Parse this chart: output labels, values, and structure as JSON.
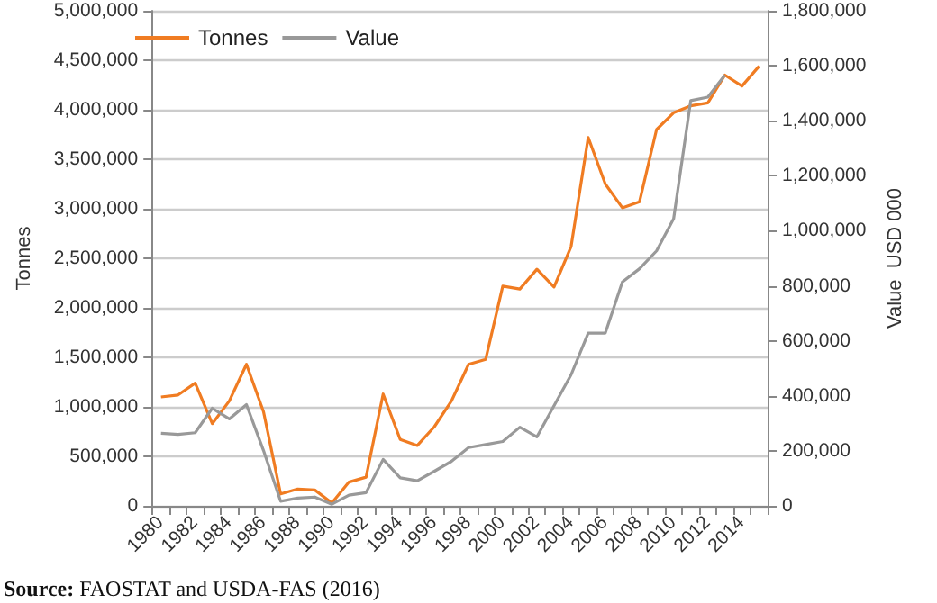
{
  "chart_data": {
    "type": "line",
    "xlabel": null,
    "ylabel": "Tonnes",
    "y2label": "Value  USD 000",
    "categories": [
      "1980",
      null,
      "1982",
      null,
      "1984",
      null,
      "1986",
      null,
      "1988",
      null,
      "1990",
      null,
      "1992",
      null,
      "1994",
      null,
      "1996",
      null,
      "1998",
      null,
      "2000",
      null,
      "2002",
      null,
      "2004",
      null,
      "2006",
      null,
      "2008",
      null,
      "2010",
      null,
      "2012",
      null,
      "2014",
      null
    ],
    "series": [
      {
        "name": "Tonnes",
        "color": "#f07c22",
        "values": [
          1100000,
          1120000,
          1240000,
          830000,
          1060000,
          1430000,
          950000,
          120000,
          170000,
          160000,
          30000,
          240000,
          290000,
          1130000,
          670000,
          610000,
          800000,
          1060000,
          1430000,
          1480000,
          2220000,
          2190000,
          2390000,
          2210000,
          2620000,
          3720000,
          3250000,
          3010000,
          3070000,
          3800000,
          3970000,
          4040000,
          4070000,
          4350000,
          4240000,
          4440000
        ]
      },
      {
        "name": "Value",
        "color": "#999999",
        "axis": "y2",
        "values": [
          264000,
          260000,
          266000,
          355000,
          316000,
          368000,
          201000,
          17000,
          28000,
          32000,
          6000,
          39000,
          48000,
          169000,
          102000,
          91000,
          126000,
          162000,
          212000,
          223000,
          234000,
          286000,
          251000,
          364000,
          477000,
          628000,
          628000,
          814000,
          862000,
          927000,
          1044000,
          1473000,
          1486000,
          1566000,
          null,
          null
        ]
      }
    ],
    "ylim": [
      0,
      5000000
    ],
    "yticks": [
      {
        "value": 0,
        "label": "0"
      },
      {
        "value": 500000,
        "label": "500,000"
      },
      {
        "value": 1000000,
        "label": "1,000,000"
      },
      {
        "value": 1500000,
        "label": "1,500,000"
      },
      {
        "value": 2000000,
        "label": "2,000,000"
      },
      {
        "value": 2500000,
        "label": "2,500,000"
      },
      {
        "value": 3000000,
        "label": "3,000,000"
      },
      {
        "value": 3500000,
        "label": "3,500,000"
      },
      {
        "value": 4000000,
        "label": "4,000,000"
      },
      {
        "value": 4500000,
        "label": "4,500,000"
      },
      {
        "value": 5000000,
        "label": "5,000,000"
      }
    ],
    "y2lim": [
      0,
      1800000
    ],
    "y2ticks": [
      {
        "value": 0,
        "label": "0"
      },
      {
        "value": 200000,
        "label": "200,000"
      },
      {
        "value": 400000,
        "label": "400,000"
      },
      {
        "value": 600000,
        "label": "600,000"
      },
      {
        "value": 800000,
        "label": "800,000"
      },
      {
        "value": 1000000,
        "label": "1,000,000"
      },
      {
        "value": 1200000,
        "label": "1,200,000"
      },
      {
        "value": 1400000,
        "label": "1,400,000"
      },
      {
        "value": 1600000,
        "label": "1,600,000"
      },
      {
        "value": 1800000,
        "label": "1,800,000"
      }
    ],
    "grid": "y",
    "legend": "top left",
    "marker": "none",
    "line_style": "solid",
    "annotations": [
      "Source: FAOSTAT and USDA-FAS (2016)"
    ]
  }
}
